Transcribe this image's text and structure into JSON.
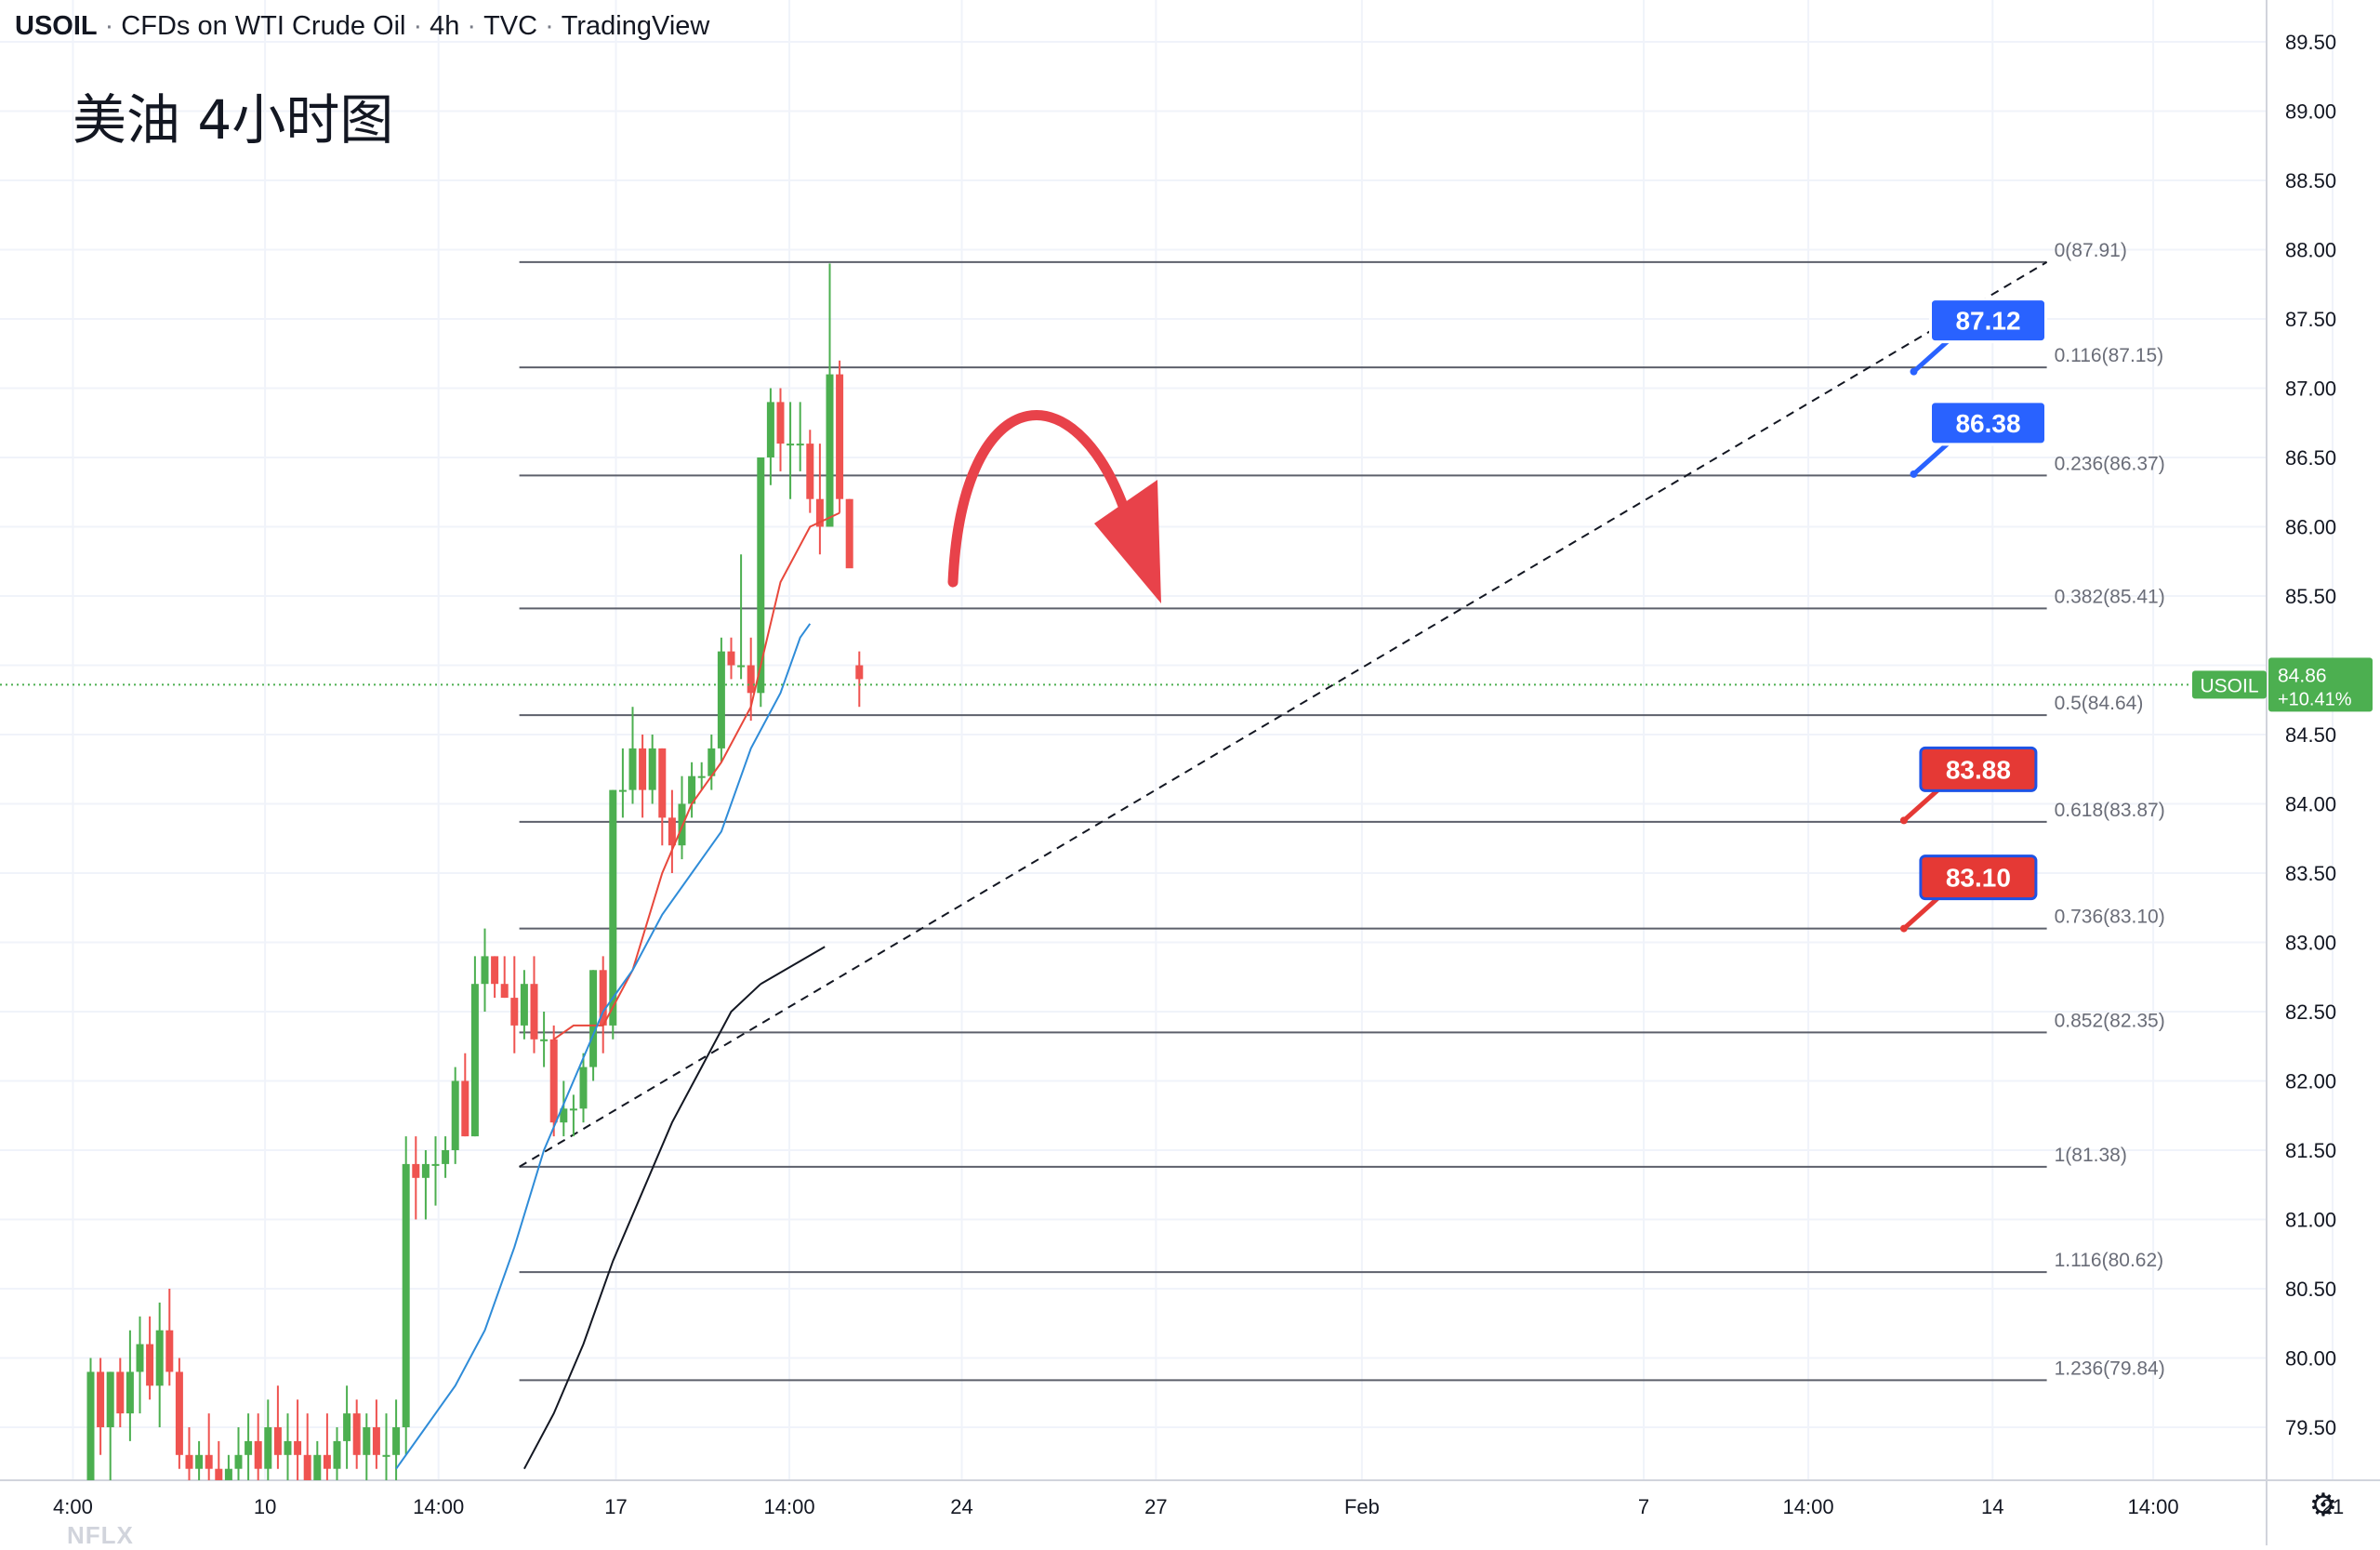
{
  "header": {
    "symbol": "USOIL",
    "description": "CFDs on WTI Crude Oil",
    "interval": "4h",
    "exchange": "TVC",
    "platform": "TradingView",
    "separator": "·"
  },
  "annotation": {
    "text": "美油 4小时图"
  },
  "watermark": "NFLX",
  "settings_icon": "gear-icon",
  "colors": {
    "up": "#4caf50",
    "down": "#ef5350",
    "ma_fast": "#e8483c",
    "ma_mid": "#2f8cd8",
    "ma_slow": "#131722",
    "fib_line": "#5d606b",
    "blue_tag": "#2962ff",
    "red_tag": "#e53935",
    "last_price": "#4caf50",
    "arrow": "#e8424a"
  },
  "chart_data": {
    "type": "candlestick",
    "symbol": "USOIL",
    "interval": "4h",
    "ylim": [
      79.1,
      89.7
    ],
    "y_ticks": [
      "79.50",
      "80.00",
      "80.50",
      "81.00",
      "81.50",
      "82.00",
      "82.50",
      "83.00",
      "83.50",
      "84.00",
      "84.50",
      "85.00",
      "85.50",
      "86.00",
      "86.50",
      "87.00",
      "87.50",
      "88.00",
      "88.50",
      "89.00",
      "89.50"
    ],
    "x_ticks": [
      {
        "label": "4:00",
        "bar": -1.8
      },
      {
        "label": "10",
        "bar": 17.7
      },
      {
        "label": "14:00",
        "bar": 35.3
      },
      {
        "label": "17",
        "bar": 53.3
      },
      {
        "label": "14:00",
        "bar": 70.9
      },
      {
        "label": "24",
        "bar": 88.4
      },
      {
        "label": "27",
        "bar": 108.1
      },
      {
        "label": "Feb",
        "bar": 129.0
      },
      {
        "label": "7",
        "bar": 157.6
      },
      {
        "label": "14:00",
        "bar": 174.3
      },
      {
        "label": "14",
        "bar": 193.0
      },
      {
        "label": "14:00",
        "bar": 209.3
      },
      {
        "label": "21",
        "bar": 227.5
      }
    ],
    "candles": [
      {
        "o": 79.0,
        "h": 80.0,
        "l": 78.9,
        "c": 79.9
      },
      {
        "o": 79.9,
        "h": 80.0,
        "l": 79.3,
        "c": 79.5
      },
      {
        "o": 79.5,
        "h": 79.9,
        "l": 79.1,
        "c": 79.9
      },
      {
        "o": 79.9,
        "h": 80.0,
        "l": 79.5,
        "c": 79.6
      },
      {
        "o": 79.6,
        "h": 80.2,
        "l": 79.4,
        "c": 79.9
      },
      {
        "o": 79.9,
        "h": 80.3,
        "l": 79.6,
        "c": 80.1
      },
      {
        "o": 80.1,
        "h": 80.3,
        "l": 79.7,
        "c": 79.8
      },
      {
        "o": 79.8,
        "h": 80.4,
        "l": 79.5,
        "c": 80.2
      },
      {
        "o": 80.2,
        "h": 80.5,
        "l": 79.8,
        "c": 79.9
      },
      {
        "o": 79.9,
        "h": 80.0,
        "l": 79.2,
        "c": 79.3
      },
      {
        "o": 79.3,
        "h": 79.5,
        "l": 79.1,
        "c": 79.2
      },
      {
        "o": 79.2,
        "h": 79.4,
        "l": 79.1,
        "c": 79.3
      },
      {
        "o": 79.3,
        "h": 79.6,
        "l": 79.1,
        "c": 79.2
      },
      {
        "o": 79.2,
        "h": 79.4,
        "l": 79.0,
        "c": 79.1
      },
      {
        "o": 79.1,
        "h": 79.3,
        "l": 79.0,
        "c": 79.2
      },
      {
        "o": 79.2,
        "h": 79.5,
        "l": 79.1,
        "c": 79.3
      },
      {
        "o": 79.3,
        "h": 79.6,
        "l": 79.1,
        "c": 79.4
      },
      {
        "o": 79.4,
        "h": 79.6,
        "l": 79.1,
        "c": 79.2
      },
      {
        "o": 79.2,
        "h": 79.7,
        "l": 79.0,
        "c": 79.5
      },
      {
        "o": 79.5,
        "h": 79.8,
        "l": 79.2,
        "c": 79.3
      },
      {
        "o": 79.3,
        "h": 79.6,
        "l": 79.0,
        "c": 79.4
      },
      {
        "o": 79.4,
        "h": 79.7,
        "l": 79.1,
        "c": 79.3
      },
      {
        "o": 79.3,
        "h": 79.6,
        "l": 79.0,
        "c": 79.1
      },
      {
        "o": 79.1,
        "h": 79.4,
        "l": 79.0,
        "c": 79.3
      },
      {
        "o": 79.3,
        "h": 79.6,
        "l": 79.0,
        "c": 79.2
      },
      {
        "o": 79.2,
        "h": 79.5,
        "l": 79.0,
        "c": 79.4
      },
      {
        "o": 79.4,
        "h": 79.8,
        "l": 79.2,
        "c": 79.6
      },
      {
        "o": 79.6,
        "h": 79.7,
        "l": 79.2,
        "c": 79.3
      },
      {
        "o": 79.3,
        "h": 79.6,
        "l": 79.1,
        "c": 79.5
      },
      {
        "o": 79.5,
        "h": 79.7,
        "l": 79.2,
        "c": 79.3
      },
      {
        "o": 79.3,
        "h": 79.6,
        "l": 79.1,
        "c": 79.3
      },
      {
        "o": 79.3,
        "h": 79.7,
        "l": 79.0,
        "c": 79.5
      },
      {
        "o": 79.5,
        "h": 81.6,
        "l": 79.3,
        "c": 81.4
      },
      {
        "o": 81.4,
        "h": 81.6,
        "l": 81.0,
        "c": 81.3
      },
      {
        "o": 81.3,
        "h": 81.5,
        "l": 81.0,
        "c": 81.4
      },
      {
        "o": 81.4,
        "h": 81.6,
        "l": 81.1,
        "c": 81.4
      },
      {
        "o": 81.4,
        "h": 81.6,
        "l": 81.3,
        "c": 81.5
      },
      {
        "o": 81.5,
        "h": 82.1,
        "l": 81.4,
        "c": 82.0
      },
      {
        "o": 82.0,
        "h": 82.2,
        "l": 81.6,
        "c": 81.6
      },
      {
        "o": 81.6,
        "h": 82.9,
        "l": 81.6,
        "c": 82.7
      },
      {
        "o": 82.7,
        "h": 83.1,
        "l": 82.5,
        "c": 82.9
      },
      {
        "o": 82.9,
        "h": 82.9,
        "l": 82.6,
        "c": 82.7
      },
      {
        "o": 82.7,
        "h": 82.9,
        "l": 82.6,
        "c": 82.6
      },
      {
        "o": 82.6,
        "h": 82.9,
        "l": 82.2,
        "c": 82.4
      },
      {
        "o": 82.4,
        "h": 82.8,
        "l": 82.3,
        "c": 82.7
      },
      {
        "o": 82.7,
        "h": 82.9,
        "l": 82.2,
        "c": 82.3
      },
      {
        "o": 82.3,
        "h": 82.5,
        "l": 82.1,
        "c": 82.3
      },
      {
        "o": 82.3,
        "h": 82.4,
        "l": 81.6,
        "c": 81.7
      },
      {
        "o": 81.7,
        "h": 82.0,
        "l": 81.6,
        "c": 81.8
      },
      {
        "o": 81.8,
        "h": 81.9,
        "l": 81.6,
        "c": 81.8
      },
      {
        "o": 81.8,
        "h": 82.2,
        "l": 81.7,
        "c": 82.1
      },
      {
        "o": 82.1,
        "h": 82.8,
        "l": 82.0,
        "c": 82.8
      },
      {
        "o": 82.8,
        "h": 82.9,
        "l": 82.2,
        "c": 82.4
      },
      {
        "o": 82.4,
        "h": 84.1,
        "l": 82.3,
        "c": 84.1
      },
      {
        "o": 84.1,
        "h": 84.4,
        "l": 83.9,
        "c": 84.1
      },
      {
        "o": 84.1,
        "h": 84.7,
        "l": 84.0,
        "c": 84.4
      },
      {
        "o": 84.4,
        "h": 84.5,
        "l": 83.9,
        "c": 84.1
      },
      {
        "o": 84.1,
        "h": 84.5,
        "l": 84.0,
        "c": 84.4
      },
      {
        "o": 84.4,
        "h": 84.4,
        "l": 83.7,
        "c": 83.9
      },
      {
        "o": 83.9,
        "h": 84.1,
        "l": 83.5,
        "c": 83.7
      },
      {
        "o": 83.7,
        "h": 84.2,
        "l": 83.6,
        "c": 84.0
      },
      {
        "o": 84.0,
        "h": 84.3,
        "l": 83.9,
        "c": 84.2
      },
      {
        "o": 84.2,
        "h": 84.3,
        "l": 84.1,
        "c": 84.2
      },
      {
        "o": 84.2,
        "h": 84.5,
        "l": 84.1,
        "c": 84.4
      },
      {
        "o": 84.4,
        "h": 85.2,
        "l": 84.3,
        "c": 85.1
      },
      {
        "o": 85.1,
        "h": 85.2,
        "l": 84.9,
        "c": 85.0
      },
      {
        "o": 85.0,
        "h": 85.8,
        "l": 84.9,
        "c": 85.0
      },
      {
        "o": 85.0,
        "h": 85.2,
        "l": 84.6,
        "c": 84.8
      },
      {
        "o": 84.8,
        "h": 86.5,
        "l": 84.7,
        "c": 86.5
      },
      {
        "o": 86.5,
        "h": 87.0,
        "l": 86.3,
        "c": 86.9
      },
      {
        "o": 86.9,
        "h": 87.0,
        "l": 86.4,
        "c": 86.6
      },
      {
        "o": 86.6,
        "h": 86.9,
        "l": 86.2,
        "c": 86.6
      },
      {
        "o": 86.6,
        "h": 86.9,
        "l": 86.4,
        "c": 86.6
      },
      {
        "o": 86.6,
        "h": 86.7,
        "l": 86.1,
        "c": 86.2
      },
      {
        "o": 86.2,
        "h": 86.6,
        "l": 85.8,
        "c": 86.0
      },
      {
        "o": 86.0,
        "h": 87.9,
        "l": 86.0,
        "c": 87.1
      },
      {
        "o": 87.1,
        "h": 87.2,
        "l": 86.1,
        "c": 86.2
      },
      {
        "o": 86.2,
        "h": 86.2,
        "l": 85.8,
        "c": 85.7
      },
      {
        "o": 85.0,
        "h": 85.1,
        "l": 84.7,
        "c": 84.9
      }
    ],
    "moving_averages": [
      {
        "color": "ma_fast",
        "points": [
          [
            47,
            82.3
          ],
          [
            49,
            82.4
          ],
          [
            52,
            82.4
          ],
          [
            55,
            82.8
          ],
          [
            58,
            83.5
          ],
          [
            61,
            84.0
          ],
          [
            64,
            84.3
          ],
          [
            67,
            84.7
          ],
          [
            70,
            85.6
          ],
          [
            73,
            86.0
          ],
          [
            76,
            86.1
          ]
        ]
      },
      {
        "color": "ma_mid",
        "points": [
          [
            31,
            79.2
          ],
          [
            34,
            79.5
          ],
          [
            37,
            79.8
          ],
          [
            40,
            80.2
          ],
          [
            43,
            80.8
          ],
          [
            46,
            81.5
          ],
          [
            49,
            82.0
          ],
          [
            52,
            82.5
          ],
          [
            55,
            82.8
          ],
          [
            58,
            83.2
          ],
          [
            61,
            83.5
          ],
          [
            64,
            83.8
          ],
          [
            67,
            84.4
          ],
          [
            70,
            84.8
          ],
          [
            72,
            85.2
          ],
          [
            73,
            85.3
          ]
        ]
      },
      {
        "color": "ma_slow",
        "points": [
          [
            44,
            79.2
          ],
          [
            47,
            79.6
          ],
          [
            50,
            80.1
          ],
          [
            53,
            80.7
          ],
          [
            56,
            81.2
          ],
          [
            59,
            81.7
          ],
          [
            62,
            82.1
          ],
          [
            65,
            82.5
          ],
          [
            68,
            82.7
          ]
        ]
      }
    ],
    "fibonacci": [
      {
        "label": "0(87.91)",
        "price": 87.91
      },
      {
        "label": "0.116(87.15)",
        "price": 87.15
      },
      {
        "label": "0.236(86.37)",
        "price": 86.37
      },
      {
        "label": "0.382(85.41)",
        "price": 85.41
      },
      {
        "label": "0.5(84.64)",
        "price": 84.64
      },
      {
        "label": "0.618(83.87)",
        "price": 83.87
      },
      {
        "label": "0.736(83.10)",
        "price": 83.1
      },
      {
        "label": "0.852(82.35)",
        "price": 82.35
      },
      {
        "label": "1(81.38)",
        "price": 81.38
      },
      {
        "label": "1.116(80.62)",
        "price": 80.62
      },
      {
        "label": "1.236(79.84)",
        "price": 79.84
      }
    ],
    "fib_range_bars": [
      43.5,
      198.5
    ],
    "trendline": {
      "from": [
        43.5,
        81.38
      ],
      "to": [
        198.5,
        87.91
      ],
      "style": "dashed"
    },
    "slow_tail": {
      "from": [
        68,
        82.7
      ],
      "to": [
        74.5,
        82.7
      ]
    },
    "price_tags": [
      {
        "text": "87.12",
        "price": 87.12,
        "color": "blue_tag",
        "anchor_bar": 185.0,
        "anchor_price": 87.12
      },
      {
        "text": "86.38",
        "price": 86.38,
        "color": "blue_tag",
        "anchor_bar": 185.0,
        "anchor_price": 86.38
      },
      {
        "text": "83.88",
        "price": 83.88,
        "color": "red_tag",
        "anchor_bar": 184.0,
        "anchor_price": 83.88
      },
      {
        "text": "83.10",
        "price": 83.1,
        "color": "red_tag",
        "anchor_bar": 184.0,
        "anchor_price": 83.1
      }
    ],
    "last_price": {
      "symbol": "USOIL",
      "price": "84.86",
      "change": "+10.41%",
      "value": 84.86
    },
    "forecast_arrow": {
      "from": [
        87.5,
        85.6
      ],
      "peak": [
        95,
        86.7
      ],
      "to": [
        107.5,
        85.5
      ]
    }
  }
}
